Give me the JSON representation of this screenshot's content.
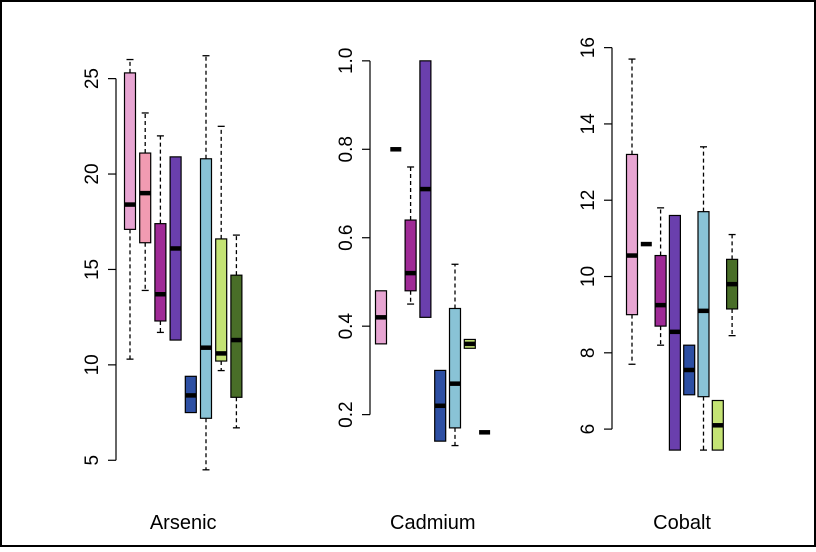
{
  "chart_data": [
    {
      "type": "box",
      "title": "",
      "xlabel": "Arsenic",
      "ylabel": "",
      "ylim": [
        4.7,
        26.5
      ],
      "yticks": [
        5,
        10,
        15,
        20,
        25
      ],
      "boxes": [
        {
          "color": "#e7a5d2",
          "whisker_low": 10.3,
          "q1": 17.1,
          "median": 18.4,
          "q3": 25.3,
          "whisker_high": 26.0
        },
        {
          "color": "#f19bb2",
          "whisker_low": 13.9,
          "q1": 16.4,
          "median": 19.0,
          "q3": 21.1,
          "whisker_high": 23.2
        },
        {
          "color": "#9f2a96",
          "whisker_low": 11.7,
          "q1": 12.3,
          "median": 13.7,
          "q3": 17.4,
          "whisker_high": 22.0
        },
        {
          "color": "#6a3fad",
          "whisker_low": null,
          "q1": 11.3,
          "median": 16.1,
          "q3": 20.9,
          "whisker_high": null
        },
        {
          "color": "#2d4fa3",
          "whisker_low": null,
          "q1": 7.5,
          "median": 8.4,
          "q3": 9.4,
          "whisker_high": null
        },
        {
          "color": "#89c3d6",
          "whisker_low": 4.5,
          "q1": 7.2,
          "median": 10.9,
          "q3": 20.8,
          "whisker_high": 26.2
        },
        {
          "color": "#c4e374",
          "whisker_low": 9.7,
          "q1": 10.2,
          "median": 10.6,
          "q3": 16.6,
          "whisker_high": 22.5
        },
        {
          "color": "#496e28",
          "whisker_low": 6.7,
          "q1": 8.3,
          "median": 11.3,
          "q3": 14.7,
          "whisker_high": 16.8
        }
      ]
    },
    {
      "type": "box",
      "title": "",
      "xlabel": "Cadmium",
      "ylabel": "",
      "ylim": [
        0.12,
        1.02
      ],
      "yticks": [
        0.2,
        0.4,
        0.6,
        0.8,
        1.0
      ],
      "ytick_labels": [
        "0.2",
        "0.4",
        "0.6",
        "0.8",
        "1.0"
      ],
      "boxes": [
        {
          "color": "#e7a5d2",
          "whisker_low": null,
          "q1": 0.36,
          "median": 0.42,
          "q3": 0.48,
          "whisker_high": null
        },
        {
          "color": "#f19bb2",
          "whisker_low": null,
          "q1": 0.8,
          "median": 0.8,
          "q3": 0.8,
          "whisker_high": null
        },
        {
          "color": "#9f2a96",
          "whisker_low": 0.45,
          "q1": 0.48,
          "median": 0.52,
          "q3": 0.64,
          "whisker_high": 0.76
        },
        {
          "color": "#6a3fad",
          "whisker_low": null,
          "q1": 0.42,
          "median": 0.71,
          "q3": 1.0,
          "whisker_high": null
        },
        {
          "color": "#2d4fa3",
          "whisker_low": null,
          "q1": 0.14,
          "median": 0.22,
          "q3": 0.3,
          "whisker_high": null
        },
        {
          "color": "#89c3d6",
          "whisker_low": 0.13,
          "q1": 0.17,
          "median": 0.27,
          "q3": 0.44,
          "whisker_high": 0.54
        },
        {
          "color": "#c4e374",
          "whisker_low": null,
          "q1": 0.35,
          "median": 0.36,
          "q3": 0.37,
          "whisker_high": null
        },
        {
          "color": "#496e28",
          "whisker_low": null,
          "q1": 0.16,
          "median": 0.16,
          "q3": 0.16,
          "whisker_high": null
        }
      ]
    },
    {
      "type": "box",
      "title": "",
      "xlabel": "Cobalt",
      "ylabel": "",
      "ylim": [
        5.4,
        16.2
      ],
      "yticks": [
        6,
        8,
        10,
        12,
        14,
        16
      ],
      "boxes": [
        {
          "color": "#e7a5d2",
          "whisker_low": 7.7,
          "q1": 9.0,
          "median": 10.55,
          "q3": 13.2,
          "whisker_high": 15.7
        },
        {
          "color": "#f19bb2",
          "whisker_low": null,
          "q1": 10.85,
          "median": 10.85,
          "q3": 10.85,
          "whisker_high": null
        },
        {
          "color": "#9f2a96",
          "whisker_low": 8.2,
          "q1": 8.7,
          "median": 9.25,
          "q3": 10.55,
          "whisker_high": 11.8
        },
        {
          "color": "#6a3fad",
          "whisker_low": null,
          "q1": 5.45,
          "median": 8.55,
          "q3": 11.6,
          "whisker_high": null
        },
        {
          "color": "#2d4fa3",
          "whisker_low": null,
          "q1": 6.9,
          "median": 7.55,
          "q3": 8.2,
          "whisker_high": null
        },
        {
          "color": "#89c3d6",
          "whisker_low": 5.45,
          "q1": 6.85,
          "median": 9.1,
          "q3": 11.7,
          "whisker_high": 13.4
        },
        {
          "color": "#c4e374",
          "whisker_low": null,
          "q1": 5.45,
          "median": 6.1,
          "q3": 6.75,
          "whisker_high": null
        },
        {
          "color": "#496e28",
          "whisker_low": 8.45,
          "q1": 9.15,
          "median": 9.8,
          "q3": 10.45,
          "whisker_high": 11.1
        }
      ]
    }
  ]
}
